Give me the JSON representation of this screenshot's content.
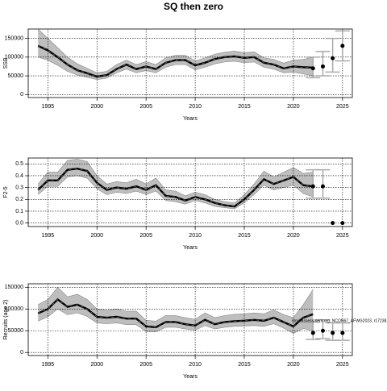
{
  "title": "SQ then zero",
  "chart_data": [
    {
      "type": "line",
      "ylabel": "SSB",
      "xlabel": "Years",
      "xlim": [
        1993,
        2026
      ],
      "xticks": [
        1995,
        2000,
        2005,
        2010,
        2015,
        2020,
        2025
      ],
      "ylim": [
        -8000,
        175000
      ],
      "yticks": [
        0,
        50000,
        100000,
        150000
      ],
      "grid": true,
      "line_color": "#000000",
      "band_color": "#bebebe",
      "errorbar_color": "#aaaaaa",
      "x": [
        1994,
        1995,
        1996,
        1997,
        1998,
        1999,
        2000,
        2001,
        2002,
        2003,
        2004,
        2005,
        2006,
        2007,
        2008,
        2009,
        2010,
        2011,
        2012,
        2013,
        2014,
        2015,
        2016,
        2017,
        2018,
        2019,
        2020,
        2021,
        2022
      ],
      "values": [
        130000,
        118000,
        100000,
        80000,
        65000,
        57000,
        48000,
        52000,
        68000,
        80000,
        68000,
        75000,
        68000,
        85000,
        92000,
        92000,
        78000,
        85000,
        95000,
        100000,
        102000,
        98000,
        100000,
        85000,
        80000,
        70000,
        75000,
        73000,
        72000
      ],
      "lower": [
        100000,
        92000,
        78000,
        62000,
        52000,
        46000,
        40000,
        44000,
        58000,
        68000,
        58000,
        64000,
        58000,
        73000,
        80000,
        80000,
        66000,
        73000,
        82000,
        87000,
        89000,
        85000,
        87000,
        73000,
        68000,
        58000,
        60000,
        55000,
        50000
      ],
      "upper": [
        175000,
        150000,
        125000,
        100000,
        82000,
        70000,
        58000,
        62000,
        80000,
        92000,
        80000,
        88000,
        80000,
        98000,
        105000,
        105000,
        90000,
        98000,
        108000,
        113000,
        116000,
        112000,
        114000,
        98000,
        94000,
        84000,
        92000,
        94000,
        100000
      ],
      "points": {
        "x": [
          2022,
          2023,
          2024,
          2025
        ],
        "values": [
          70000,
          75000,
          97000,
          130000
        ],
        "lower": [
          45000,
          50000,
          60000,
          90000
        ],
        "upper": [
          100000,
          115000,
          150000,
          170000
        ]
      }
    },
    {
      "type": "line",
      "ylabel": "F2-5",
      "xlabel": "Years",
      "xlim": [
        1993,
        2026
      ],
      "xticks": [
        1995,
        2000,
        2005,
        2010,
        2015,
        2020,
        2025
      ],
      "ylim": [
        -0.03,
        0.55
      ],
      "yticks": [
        {
          "value": 0,
          "label": "0.0"
        },
        0.1,
        0.2,
        0.3,
        0.4,
        0.5
      ],
      "grid": true,
      "line_color": "#000000",
      "band_color": "#bebebe",
      "errorbar_color": "#aaaaaa",
      "x": [
        1994,
        1995,
        1996,
        1997,
        1998,
        1999,
        2000,
        2001,
        2002,
        2003,
        2004,
        2005,
        2006,
        2007,
        2008,
        2009,
        2010,
        2011,
        2012,
        2013,
        2014,
        2015,
        2016,
        2017,
        2018,
        2019,
        2020,
        2021,
        2022
      ],
      "values": [
        0.28,
        0.36,
        0.36,
        0.45,
        0.46,
        0.44,
        0.34,
        0.28,
        0.3,
        0.29,
        0.31,
        0.28,
        0.32,
        0.23,
        0.22,
        0.19,
        0.22,
        0.2,
        0.17,
        0.15,
        0.14,
        0.2,
        0.28,
        0.37,
        0.33,
        0.36,
        0.39,
        0.32,
        0.31
      ],
      "lower": [
        0.24,
        0.31,
        0.31,
        0.39,
        0.4,
        0.38,
        0.29,
        0.24,
        0.26,
        0.25,
        0.27,
        0.24,
        0.27,
        0.19,
        0.18,
        0.16,
        0.19,
        0.17,
        0.14,
        0.13,
        0.12,
        0.17,
        0.24,
        0.32,
        0.28,
        0.3,
        0.32,
        0.25,
        0.22
      ],
      "upper": [
        0.33,
        0.43,
        0.43,
        0.53,
        0.54,
        0.52,
        0.4,
        0.33,
        0.35,
        0.34,
        0.37,
        0.33,
        0.38,
        0.28,
        0.27,
        0.23,
        0.26,
        0.24,
        0.2,
        0.18,
        0.17,
        0.24,
        0.33,
        0.44,
        0.39,
        0.43,
        0.47,
        0.42,
        0.43
      ],
      "points": {
        "x": [
          2022,
          2023,
          2024,
          2025
        ],
        "values": [
          0.31,
          0.31,
          0,
          0
        ],
        "lower": [
          0.21,
          0.21,
          null,
          null
        ],
        "upper": [
          0.45,
          0.45,
          null,
          null
        ]
      }
    },
    {
      "type": "line",
      "ylabel": "Recruits (age 2)",
      "xlabel": "Years",
      "xlim": [
        1993,
        2026
      ],
      "xticks": [
        1995,
        2000,
        2005,
        2010,
        2015,
        2020,
        2025
      ],
      "ylim": [
        -7000,
        158000
      ],
      "yticks": [
        0,
        50000,
        100000,
        150000
      ],
      "grid": true,
      "line_color": "#000000",
      "band_color": "#bebebe",
      "errorbar_color": "#aaaaaa",
      "annotation": "stockassessment.org, NCON67_AFWG2023, r17238, git:ec2c",
      "x": [
        1994,
        1995,
        1996,
        1997,
        1998,
        1999,
        2000,
        2001,
        2002,
        2003,
        2004,
        2005,
        2006,
        2007,
        2008,
        2009,
        2010,
        2011,
        2012,
        2013,
        2014,
        2015,
        2016,
        2017,
        2018,
        2019,
        2020,
        2021,
        2022
      ],
      "values": [
        90000,
        100000,
        122000,
        105000,
        110000,
        100000,
        82000,
        80000,
        82000,
        78000,
        78000,
        60000,
        58000,
        70000,
        70000,
        65000,
        62000,
        75000,
        65000,
        70000,
        72000,
        73000,
        75000,
        73000,
        80000,
        70000,
        60000,
        80000,
        88000
      ],
      "lower": [
        72000,
        82000,
        100000,
        87000,
        91000,
        83000,
        68000,
        66000,
        68000,
        64000,
        64000,
        48000,
        47000,
        58000,
        58000,
        54000,
        51000,
        62000,
        54000,
        58000,
        60000,
        61000,
        62000,
        60000,
        66000,
        56000,
        44000,
        55000,
        50000
      ],
      "upper": [
        110000,
        122000,
        150000,
        128000,
        134000,
        122000,
        100000,
        97000,
        100000,
        95000,
        95000,
        74000,
        72000,
        85000,
        85000,
        80000,
        76000,
        91000,
        80000,
        85000,
        88000,
        89000,
        91000,
        89000,
        98000,
        87000,
        80000,
        110000,
        145000
      ],
      "points": {
        "x": [
          2022,
          2023,
          2024,
          2025
        ],
        "values": [
          45000,
          50000,
          45000,
          45000
        ],
        "lower": [
          30000,
          32000,
          28000,
          28000
        ],
        "upper": [
          70000,
          75000,
          68000,
          68000
        ]
      }
    }
  ]
}
